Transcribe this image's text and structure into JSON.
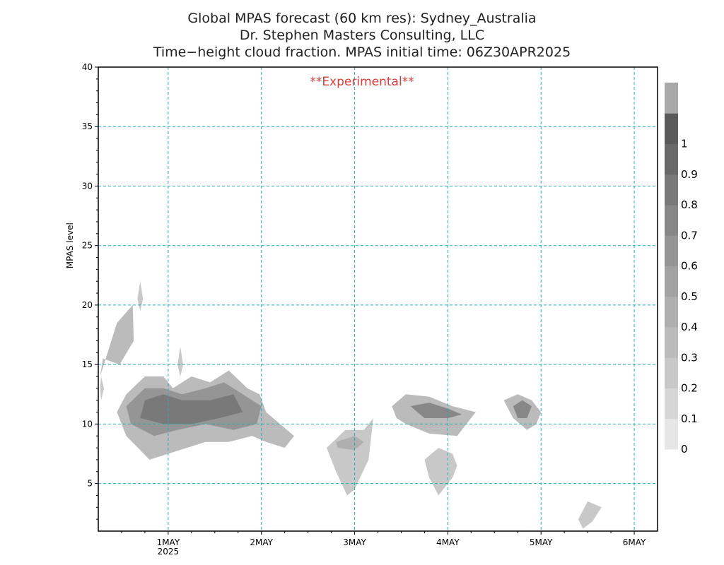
{
  "titles": [
    "Global MPAS forecast (60 km res): Sydney_Australia",
    "Dr. Stephen Masters Consulting, LLC",
    "Time−height cloud fraction.    MPAS initial time: 06Z30APR2025"
  ],
  "annotation": {
    "text": "**Experimental**",
    "color": "#e03a3a"
  },
  "colors": {
    "grid": "#1ab3b3",
    "frame": "#000000"
  },
  "chart_data": {
    "type": "heatmap",
    "ylabel": "MPAS level",
    "xlim": [
      0.25,
      6.25
    ],
    "ylim": [
      1,
      40
    ],
    "grid": true,
    "colorbar_placement": "right",
    "x_ticks": [
      {
        "value": 1,
        "label": "1MAY",
        "sublabel": "2025"
      },
      {
        "value": 2,
        "label": "2MAY",
        "sublabel": ""
      },
      {
        "value": 3,
        "label": "3MAY",
        "sublabel": ""
      },
      {
        "value": 4,
        "label": "4MAY",
        "sublabel": ""
      },
      {
        "value": 5,
        "label": "5MAY",
        "sublabel": ""
      },
      {
        "value": 6,
        "label": "6MAY",
        "sublabel": ""
      }
    ],
    "y_ticks": [
      5,
      10,
      15,
      20,
      25,
      30,
      35,
      40
    ],
    "colorbar": {
      "levels": [
        "0",
        "0.1",
        "0.2",
        "0.3",
        "0.4",
        "0.5",
        "0.6",
        "0.7",
        "0.8",
        "0.9",
        "1"
      ],
      "colors": [
        "#e6e6e6",
        "#d6d6d6",
        "#c8c8c8",
        "#bbbbbb",
        "#afafaf",
        "#a2a2a2",
        "#959595",
        "#878787",
        "#797979",
        "#696969",
        "#5a5a5a",
        "#a8a8a8"
      ]
    },
    "cloud_regions": [
      {
        "name": "early-upper-band",
        "x": [
          0.27,
          0.45,
          0.62,
          0.63,
          0.48,
          0.3,
          0.27
        ],
        "y": [
          14.0,
          18.5,
          20.0,
          17.0,
          15.0,
          15.5,
          14.0
        ],
        "fraction": 0.3
      },
      {
        "name": "isolated-tuft-0.7d",
        "x": [
          0.67,
          0.7,
          0.73,
          0.7,
          0.67
        ],
        "y": [
          20.5,
          22.0,
          20.5,
          19.5,
          20.5
        ],
        "fraction": 0.25
      },
      {
        "name": "low-tuft-0.3d",
        "x": [
          0.28,
          0.31,
          0.28,
          0.27,
          0.28
        ],
        "y": [
          12.0,
          13.0,
          14.0,
          13.0,
          12.0
        ],
        "fraction": 0.25
      },
      {
        "name": "main-band-outer",
        "x": [
          0.45,
          0.55,
          0.75,
          0.95,
          1.05,
          1.25,
          1.45,
          1.65,
          1.85,
          1.98,
          2.05,
          2.35,
          2.25,
          2.05,
          1.9,
          1.65,
          1.4,
          1.2,
          1.0,
          0.8,
          0.55,
          0.45
        ],
        "y": [
          11.0,
          12.5,
          14.0,
          14.0,
          13.0,
          14.0,
          13.5,
          14.5,
          13.0,
          12.5,
          11.0,
          9.0,
          8.0,
          8.5,
          9.0,
          8.5,
          8.5,
          8.0,
          7.5,
          7.0,
          9.0,
          11.0
        ],
        "fraction": 0.3
      },
      {
        "name": "main-band-mid",
        "x": [
          0.55,
          0.75,
          0.95,
          1.15,
          1.4,
          1.6,
          1.8,
          2.0,
          1.95,
          1.7,
          1.4,
          1.1,
          0.85,
          0.6,
          0.55
        ],
        "y": [
          11.5,
          13.0,
          13.0,
          12.5,
          13.0,
          13.5,
          12.5,
          11.5,
          10.0,
          9.5,
          10.0,
          9.5,
          9.0,
          10.0,
          11.5
        ],
        "fraction": 0.6
      },
      {
        "name": "main-band-core",
        "x": [
          0.75,
          0.95,
          1.15,
          1.45,
          1.7,
          1.8,
          1.55,
          1.25,
          0.95,
          0.7,
          0.75
        ],
        "y": [
          12.0,
          12.5,
          12.0,
          12.0,
          12.5,
          11.0,
          10.5,
          10.0,
          10.0,
          10.5,
          12.0
        ],
        "fraction": 0.85
      },
      {
        "name": "main-band-spike",
        "x": [
          1.1,
          1.13,
          1.16,
          1.13,
          1.1
        ],
        "y": [
          15.0,
          16.5,
          15.0,
          14.0,
          15.0
        ],
        "fraction": 0.2
      },
      {
        "name": "3may-lower-cloud",
        "x": [
          2.7,
          2.9,
          3.1,
          3.2,
          3.15,
          3.0,
          2.92,
          2.8,
          2.7
        ],
        "y": [
          8.0,
          9.5,
          9.5,
          10.5,
          7.0,
          4.5,
          4.0,
          6.0,
          8.0
        ],
        "fraction": 0.25
      },
      {
        "name": "3may-dense-patch",
        "x": [
          2.8,
          3.0,
          3.1,
          3.0,
          2.82,
          2.8
        ],
        "y": [
          8.5,
          9.0,
          8.5,
          7.8,
          8.0,
          8.5
        ],
        "fraction": 0.45
      },
      {
        "name": "3.6may-upper-outer",
        "x": [
          3.4,
          3.55,
          3.8,
          4.05,
          4.3,
          4.2,
          4.1,
          3.8,
          3.55,
          3.45,
          3.4
        ],
        "y": [
          11.5,
          12.5,
          12.3,
          11.5,
          11.0,
          10.0,
          9.0,
          9.2,
          10.0,
          10.5,
          11.5
        ],
        "fraction": 0.35
      },
      {
        "name": "3.6may-upper-core",
        "x": [
          3.6,
          3.8,
          4.0,
          4.15,
          4.0,
          3.75,
          3.6
        ],
        "y": [
          11.5,
          11.8,
          11.3,
          10.8,
          10.5,
          10.5,
          11.5
        ],
        "fraction": 0.75
      },
      {
        "name": "3.8may-lower-outer",
        "x": [
          3.75,
          3.9,
          4.05,
          4.1,
          4.05,
          3.9,
          3.8,
          3.75
        ],
        "y": [
          7.0,
          8.0,
          7.5,
          6.5,
          5.5,
          4.0,
          5.5,
          7.0
        ],
        "fraction": 0.25
      },
      {
        "name": "4.8may-outer",
        "x": [
          4.6,
          4.75,
          4.9,
          5.0,
          4.95,
          4.85,
          4.7,
          4.6
        ],
        "y": [
          12.0,
          12.5,
          12.0,
          11.0,
          10.0,
          9.5,
          10.5,
          12.0
        ],
        "fraction": 0.35
      },
      {
        "name": "4.8may-core",
        "x": [
          4.7,
          4.8,
          4.9,
          4.85,
          4.75,
          4.7
        ],
        "y": [
          11.5,
          12.0,
          11.5,
          10.5,
          10.5,
          11.5
        ],
        "fraction": 0.75
      },
      {
        "name": "5.5may-low-cloud",
        "x": [
          5.4,
          5.5,
          5.65,
          5.55,
          5.45,
          5.4
        ],
        "y": [
          2.0,
          3.5,
          3.0,
          1.8,
          1.2,
          2.0
        ],
        "fraction": 0.25
      }
    ]
  }
}
